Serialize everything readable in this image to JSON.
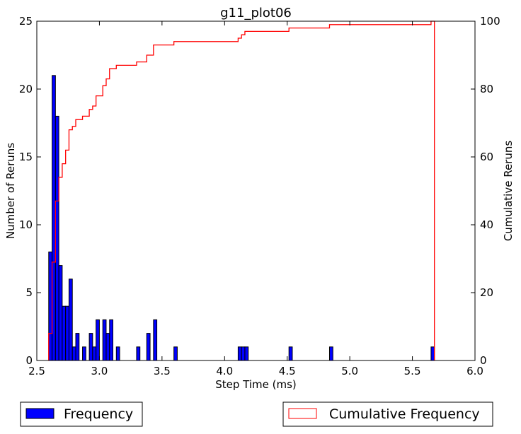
{
  "chart_data": {
    "type": "bar",
    "title": "g11_plot06",
    "xlabel": "Step Time (ms)",
    "ylabel": "Number of Reruns",
    "y2label": "Cumulative Reruns",
    "xlim": [
      2.5,
      6.0
    ],
    "ylim": [
      0,
      25
    ],
    "y2lim": [
      0,
      100
    ],
    "xticks": [
      "2.5",
      "3.0",
      "3.5",
      "4.0",
      "4.5",
      "5.0",
      "5.5",
      "6.0"
    ],
    "yticks": [
      "0",
      "5",
      "10",
      "15",
      "20",
      "25"
    ],
    "y2ticks": [
      "0",
      "20",
      "40",
      "60",
      "80",
      "100"
    ],
    "grid": false,
    "legend_placement": "bottom",
    "bin_width": 0.0269,
    "series": [
      {
        "name": "Frequency",
        "color": "#0000ff",
        "edge_color": "#000000",
        "bins": [
          {
            "x": 2.595,
            "value": 8
          },
          {
            "x": 2.622,
            "value": 21
          },
          {
            "x": 2.649,
            "value": 18
          },
          {
            "x": 2.676,
            "value": 7
          },
          {
            "x": 2.703,
            "value": 4
          },
          {
            "x": 2.73,
            "value": 4
          },
          {
            "x": 2.757,
            "value": 6
          },
          {
            "x": 2.784,
            "value": 1
          },
          {
            "x": 2.811,
            "value": 2
          },
          {
            "x": 2.865,
            "value": 1
          },
          {
            "x": 2.919,
            "value": 2
          },
          {
            "x": 2.946,
            "value": 1
          },
          {
            "x": 2.973,
            "value": 3
          },
          {
            "x": 3.027,
            "value": 3
          },
          {
            "x": 3.054,
            "value": 2
          },
          {
            "x": 3.081,
            "value": 3
          },
          {
            "x": 3.135,
            "value": 1
          },
          {
            "x": 3.297,
            "value": 1
          },
          {
            "x": 3.378,
            "value": 2
          },
          {
            "x": 3.432,
            "value": 3
          },
          {
            "x": 3.595,
            "value": 1
          },
          {
            "x": 4.108,
            "value": 1
          },
          {
            "x": 4.135,
            "value": 1
          },
          {
            "x": 4.162,
            "value": 1
          },
          {
            "x": 4.514,
            "value": 1
          },
          {
            "x": 4.838,
            "value": 1
          },
          {
            "x": 5.649,
            "value": 1
          }
        ]
      },
      {
        "name": "Cumulative Frequency",
        "color": "#ff0000",
        "type": "step",
        "axis": "right",
        "points": [
          {
            "x": 2.595,
            "y": 8
          },
          {
            "x": 2.622,
            "y": 29
          },
          {
            "x": 2.649,
            "y": 47
          },
          {
            "x": 2.676,
            "y": 54
          },
          {
            "x": 2.703,
            "y": 58
          },
          {
            "x": 2.73,
            "y": 62
          },
          {
            "x": 2.757,
            "y": 68
          },
          {
            "x": 2.784,
            "y": 69
          },
          {
            "x": 2.811,
            "y": 71
          },
          {
            "x": 2.865,
            "y": 72
          },
          {
            "x": 2.919,
            "y": 74
          },
          {
            "x": 2.946,
            "y": 75
          },
          {
            "x": 2.973,
            "y": 78
          },
          {
            "x": 3.027,
            "y": 81
          },
          {
            "x": 3.054,
            "y": 83
          },
          {
            "x": 3.081,
            "y": 86
          },
          {
            "x": 3.135,
            "y": 87
          },
          {
            "x": 3.297,
            "y": 88
          },
          {
            "x": 3.378,
            "y": 90
          },
          {
            "x": 3.432,
            "y": 93
          },
          {
            "x": 3.595,
            "y": 94
          },
          {
            "x": 4.108,
            "y": 95
          },
          {
            "x": 4.135,
            "y": 96
          },
          {
            "x": 4.162,
            "y": 97
          },
          {
            "x": 4.514,
            "y": 98
          },
          {
            "x": 4.838,
            "y": 99
          },
          {
            "x": 5.649,
            "y": 100
          },
          {
            "x": 5.676,
            "y": 0
          }
        ]
      }
    ]
  }
}
